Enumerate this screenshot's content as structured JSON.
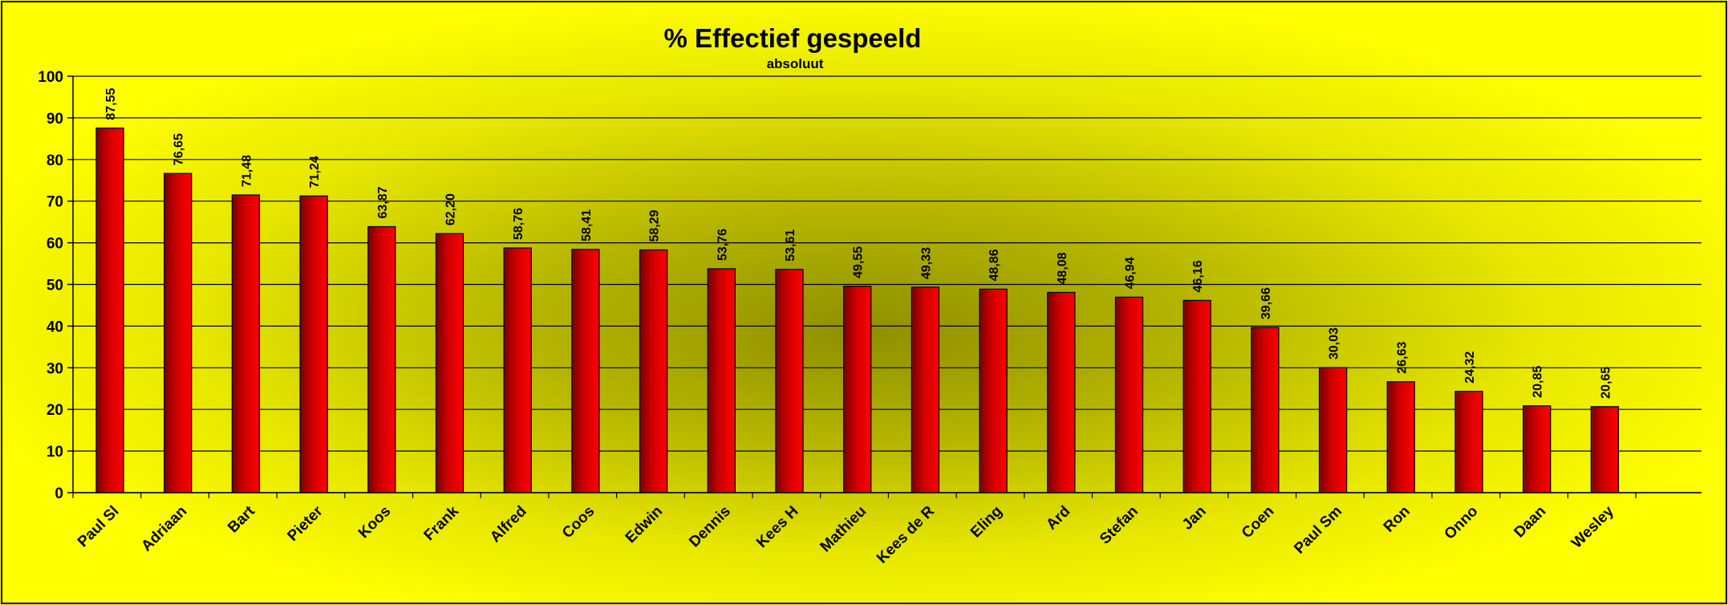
{
  "chart_data": {
    "type": "bar",
    "title": "% Effectief gespeeld",
    "subtitle": "absoluut",
    "xlabel": "",
    "ylabel": "",
    "ylim": [
      0,
      100
    ],
    "yticks": [
      0,
      10,
      20,
      30,
      40,
      50,
      60,
      70,
      80,
      90,
      100
    ],
    "grid": true,
    "legend": "none",
    "categories": [
      "Paul Sl",
      "Adriaan",
      "Bart",
      "Pieter",
      "Koos",
      "Frank",
      "Alfred",
      "Coos",
      "Edwin",
      "Dennis",
      "Kees H",
      "Mathieu",
      "Kees de R",
      "Eling",
      "Ard",
      "Stefan",
      "Jan",
      "Coen",
      "Paul Sm",
      "Ron",
      "Onno",
      "Daan",
      "Wesley"
    ],
    "values": [
      87.55,
      76.65,
      71.48,
      71.24,
      63.87,
      62.2,
      58.76,
      58.41,
      58.29,
      53.76,
      53.61,
      49.55,
      49.33,
      48.86,
      48.08,
      46.94,
      46.16,
      39.66,
      30.03,
      26.63,
      24.32,
      20.85,
      20.65
    ],
    "data_labels": [
      "87,55",
      "76,65",
      "71,48",
      "71,24",
      "63,87",
      "62,20",
      "58,76",
      "58,41",
      "58,29",
      "53,76",
      "53,61",
      "49,55",
      "49,33",
      "48,86",
      "48,08",
      "46,94",
      "46,16",
      "39,66",
      "30,03",
      "26,63",
      "24,32",
      "20,85",
      "20,65"
    ]
  },
  "colors": {
    "background": "#ffff00",
    "plot_center": "#999900",
    "bar_light": "#ff0000",
    "bar_dark": "#7a0000",
    "gridline": "#000000"
  }
}
